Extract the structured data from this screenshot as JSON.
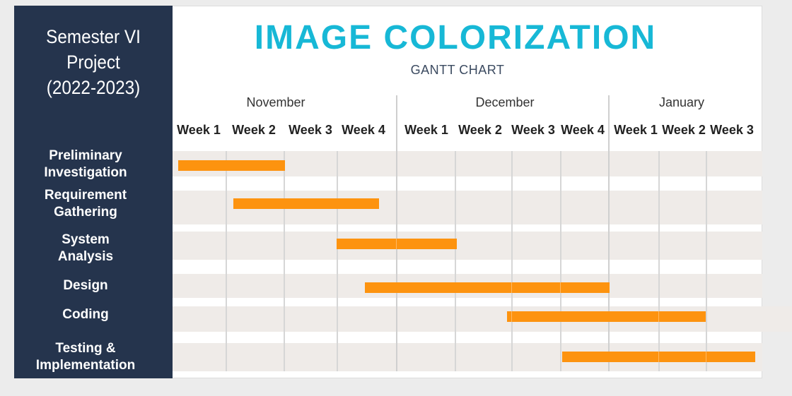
{
  "sidebar": {
    "title_lines": [
      "Semester VI",
      "Project",
      "(2022-2023)"
    ]
  },
  "header": {
    "title": "IMAGE COLORIZATION",
    "subtitle": "GANTT CHART"
  },
  "months": [
    "November",
    "December",
    "January"
  ],
  "weeks": [
    "Week 1",
    "Week 2",
    "Week 3",
    "Week 4",
    "Week 1",
    "Week 2",
    "Week 3",
    "Week 4",
    "Week 1",
    "Week 2",
    "Week 3"
  ],
  "colors": {
    "sidebar": "#25344d",
    "title": "#17b8d6",
    "bar": "#fd930f",
    "row_band": "#efebe8"
  },
  "tasks": [
    {
      "label": "Preliminary Investigation",
      "start": "Nov Week 1",
      "end": "Nov Week 2"
    },
    {
      "label": "Requirement Gathering",
      "start": "Nov Week 2",
      "end": "Nov Week 4"
    },
    {
      "label": "System Analysis",
      "start": "Nov Week 4",
      "end": "Dec Week 2"
    },
    {
      "label": "Design",
      "start": "Nov Week 4",
      "end": "Dec Week 4"
    },
    {
      "label": "Coding",
      "start": "Dec Week 3",
      "end": "Jan Week 2"
    },
    {
      "label": "Testing & Implementation",
      "start": "Dec Week 4",
      "end": "Jan Week 3"
    }
  ]
}
